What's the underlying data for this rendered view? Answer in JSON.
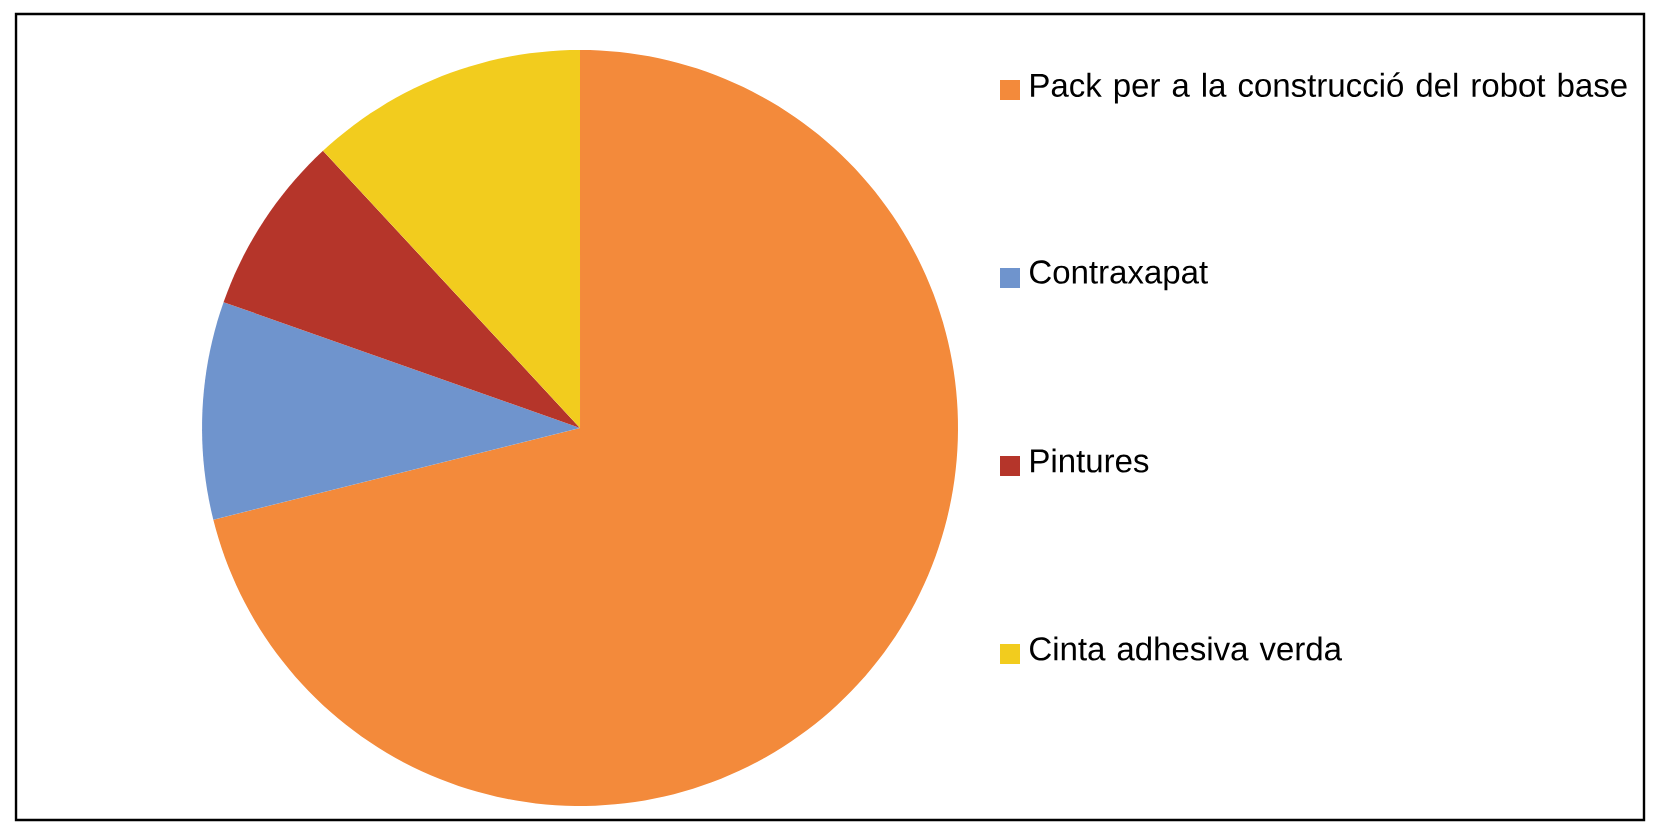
{
  "chart_data": {
    "type": "pie",
    "categories": [
      "Pack per a la construcció del robot base",
      "Contraxapat",
      "Pintures",
      "Cinta adhesiva verda"
    ],
    "values": [
      71.1,
      9.3,
      7.7,
      11.9
    ],
    "colors": [
      "#f38a3b",
      "#6f94cd",
      "#b5352a",
      "#f2cc1e"
    ],
    "legend": "right"
  }
}
